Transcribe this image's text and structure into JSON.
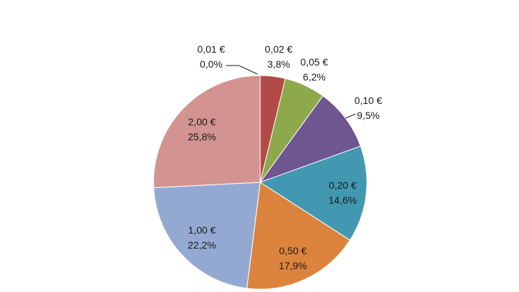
{
  "chart_data": {
    "type": "pie",
    "title": "",
    "legend": "none",
    "start_angle_deg": 0,
    "direction": "clockwise",
    "slices": [
      {
        "label": "0,01 €",
        "value_label": "0,0%",
        "value": 0.0,
        "color": "#4f81bd"
      },
      {
        "label": "0,02 €",
        "value_label": "3,8%",
        "value": 3.8,
        "color": "#b24b47"
      },
      {
        "label": "0,05 €",
        "value_label": "6,2%",
        "value": 6.2,
        "color": "#8ea94c"
      },
      {
        "label": "0,10 €",
        "value_label": "9,5%",
        "value": 9.5,
        "color": "#6e5690"
      },
      {
        "label": "0,20 €",
        "value_label": "14,6%",
        "value": 14.6,
        "color": "#4298b0"
      },
      {
        "label": "0,50 €",
        "value_label": "17,9%",
        "value": 17.9,
        "color": "#dc843d"
      },
      {
        "label": "1,00 €",
        "value_label": "22,2%",
        "value": 22.2,
        "color": "#94a9d2"
      },
      {
        "label": "2,00 €",
        "value_label": "25,8%",
        "value": 25.8,
        "color": "#d39391"
      }
    ]
  }
}
